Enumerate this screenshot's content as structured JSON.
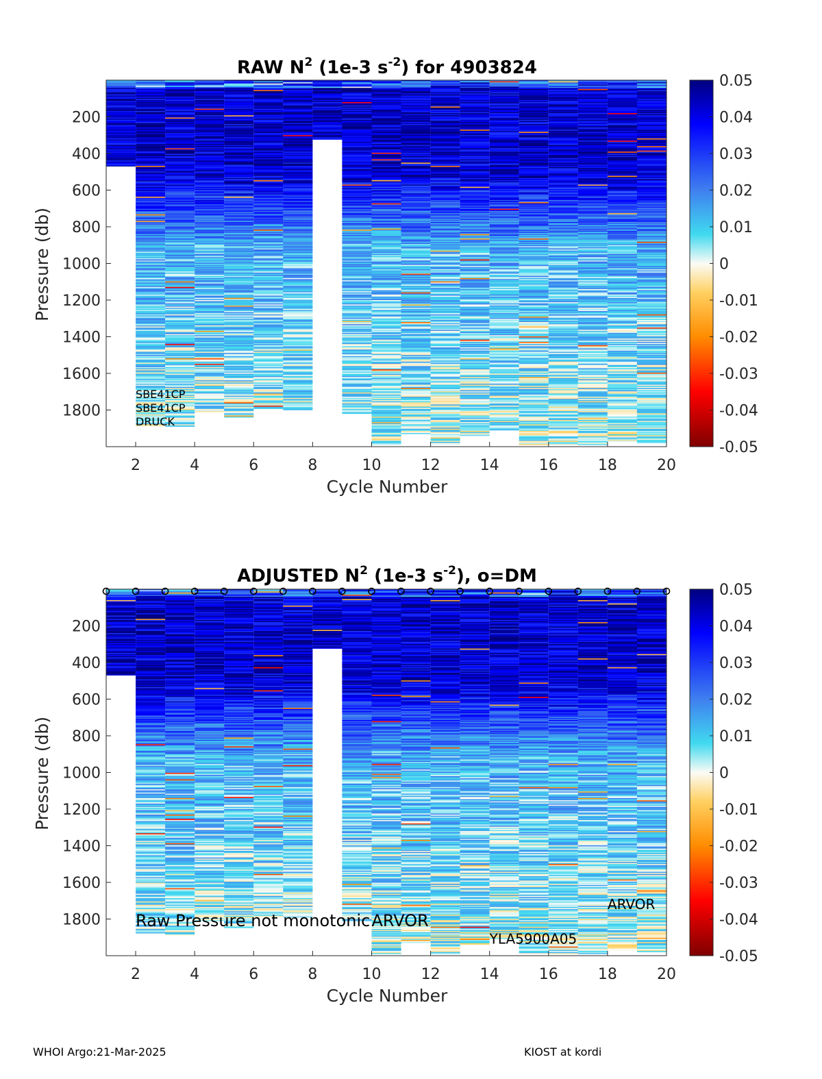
{
  "chart_data": [
    {
      "type": "heatmap",
      "title": {
        "prefix": "RAW N",
        "sup1": "2",
        "mid": " (1e-3 s",
        "sup2": "-2",
        "suffix": ") for 4903824"
      },
      "xlabel": "Cycle Number",
      "ylabel": "Pressure (db)",
      "xlim": [
        1,
        20
      ],
      "ylim": [
        0,
        2000
      ],
      "y_reversed": true,
      "xticks": [
        "2",
        "4",
        "6",
        "8",
        "10",
        "12",
        "14",
        "16",
        "18",
        "20"
      ],
      "yticks": [
        "200",
        "400",
        "600",
        "800",
        "1000",
        "1200",
        "1400",
        "1600",
        "1800"
      ],
      "colorbar": {
        "min": -0.05,
        "max": 0.05,
        "ticks": [
          "0.05",
          "0.04",
          "0.03",
          "0.02",
          "0.01",
          "0",
          "-0.01",
          "-0.02",
          "-0.03",
          "-0.04",
          "-0.05"
        ]
      },
      "profiles": [
        {
          "cycle": 1,
          "max_pressure": 470
        },
        {
          "cycle": 2,
          "max_pressure": 1890
        },
        {
          "cycle": 3,
          "max_pressure": 1890
        },
        {
          "cycle": 4,
          "max_pressure": 1810
        },
        {
          "cycle": 5,
          "max_pressure": 1840
        },
        {
          "cycle": 6,
          "max_pressure": 1800
        },
        {
          "cycle": 7,
          "max_pressure": 1800
        },
        {
          "cycle": 8,
          "max_pressure": 1790
        },
        {
          "cycle": 9,
          "max_pressure": 1820
        },
        {
          "cycle": 10,
          "max_pressure": 1990
        },
        {
          "cycle": 11,
          "max_pressure": 1930
        },
        {
          "cycle": 12,
          "max_pressure": 1990
        },
        {
          "cycle": 13,
          "max_pressure": 1940
        },
        {
          "cycle": 14,
          "max_pressure": 1910
        },
        {
          "cycle": 15,
          "max_pressure": 1990
        },
        {
          "cycle": 16,
          "max_pressure": 1990
        },
        {
          "cycle": 17,
          "max_pressure": 1990
        },
        {
          "cycle": 18,
          "max_pressure": 1970
        },
        {
          "cycle": 19,
          "max_pressure": 1980
        }
      ],
      "gaps": [
        {
          "cycle": 8,
          "from_pressure": 320,
          "to_pressure": 1790
        }
      ],
      "annotations": [
        {
          "text": "SBE41CP",
          "cycle": 2,
          "pressure": 1735
        },
        {
          "text": "SBE41CP",
          "cycle": 2,
          "pressure": 1810
        },
        {
          "text": "DRUCK",
          "cycle": 2,
          "pressure": 1885
        }
      ]
    },
    {
      "type": "heatmap",
      "title": {
        "prefix": "ADJUSTED N",
        "sup1": "2",
        "mid": " (1e-3 s",
        "sup2": "-2",
        "suffix": "), o=DM"
      },
      "xlabel": "Cycle Number",
      "ylabel": "Pressure (db)",
      "xlim": [
        1,
        20
      ],
      "ylim": [
        0,
        2000
      ],
      "y_reversed": true,
      "xticks": [
        "2",
        "4",
        "6",
        "8",
        "10",
        "12",
        "14",
        "16",
        "18",
        "20"
      ],
      "yticks": [
        "200",
        "400",
        "600",
        "800",
        "1000",
        "1200",
        "1400",
        "1600",
        "1800"
      ],
      "colorbar": {
        "min": -0.05,
        "max": 0.05,
        "ticks": [
          "0.05",
          "0.04",
          "0.03",
          "0.02",
          "0.01",
          "0",
          "-0.01",
          "-0.02",
          "-0.03",
          "-0.04",
          "-0.05"
        ]
      },
      "dm_marker": "o",
      "dm_cycles": [
        1,
        2,
        3,
        4,
        5,
        6,
        7,
        8,
        9,
        10,
        11,
        12,
        13,
        14,
        15,
        16,
        17,
        18,
        19,
        20
      ],
      "profiles": [
        {
          "cycle": 1,
          "max_pressure": 470
        },
        {
          "cycle": 2,
          "max_pressure": 1880
        },
        {
          "cycle": 3,
          "max_pressure": 1890
        },
        {
          "cycle": 4,
          "max_pressure": 1810
        },
        {
          "cycle": 5,
          "max_pressure": 1850
        },
        {
          "cycle": 6,
          "max_pressure": 1790
        },
        {
          "cycle": 7,
          "max_pressure": 1790
        },
        {
          "cycle": 8,
          "max_pressure": 1790
        },
        {
          "cycle": 9,
          "max_pressure": 1810
        },
        {
          "cycle": 10,
          "max_pressure": 1990
        },
        {
          "cycle": 11,
          "max_pressure": 1930
        },
        {
          "cycle": 12,
          "max_pressure": 1990
        },
        {
          "cycle": 13,
          "max_pressure": 1940
        },
        {
          "cycle": 14,
          "max_pressure": 1910
        },
        {
          "cycle": 15,
          "max_pressure": 1990
        },
        {
          "cycle": 16,
          "max_pressure": 1990
        },
        {
          "cycle": 17,
          "max_pressure": 1990
        },
        {
          "cycle": 18,
          "max_pressure": 1970
        },
        {
          "cycle": 19,
          "max_pressure": 1980
        }
      ],
      "gaps": [
        {
          "cycle": 8,
          "from_pressure": 320,
          "to_pressure": 1790
        }
      ],
      "annotations": [
        {
          "text": "Raw Pressure not monotonic",
          "cycle": 2,
          "pressure": 1840,
          "size": "large"
        },
        {
          "text": "ARVOR",
          "cycle": 10,
          "pressure": 1840,
          "size": "large"
        },
        {
          "text": "YLA5900A05",
          "cycle": 14,
          "pressure": 1935,
          "size": "medium"
        },
        {
          "text": "ARVOR",
          "cycle": 18,
          "pressure": 1745,
          "size": "medium"
        }
      ]
    }
  ],
  "footer": {
    "left": "WHOI Argo:21-Mar-2025",
    "right": "KIOST at kordi"
  }
}
